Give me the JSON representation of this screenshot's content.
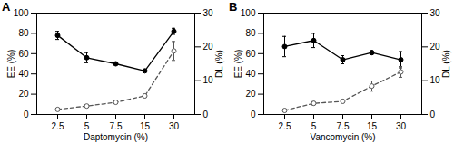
{
  "chart_data": [
    {
      "type": "line",
      "title": "A",
      "categories": [
        "2.5",
        "5",
        "7.5",
        "15",
        "30"
      ],
      "xlabel": "Daptomycin (%)",
      "ylabel": "EE (%)",
      "y2label": "DL (%)",
      "ylim": [
        0,
        100
      ],
      "yticks": [
        0,
        20,
        40,
        60,
        80,
        100
      ],
      "y2lim": [
        0,
        30
      ],
      "y2ticks": [
        0,
        10,
        20,
        30
      ],
      "series": [
        {
          "color": "#000000",
          "marker": "circle",
          "line_style": "solid",
          "values": [
            78,
            56,
            50,
            43,
            82
          ],
          "errors": [
            4,
            5,
            1,
            1,
            3
          ]
        },
        {
          "axis": "y2",
          "color": "#555555",
          "marker": "open circle",
          "line_style": "dashed",
          "values": [
            1.5,
            2.5,
            3.6,
            5.5,
            18.8
          ],
          "errors": [
            0.3,
            0.3,
            0.4,
            0.5,
            2.8
          ]
        }
      ]
    },
    {
      "type": "line",
      "title": "B",
      "categories": [
        "2.5",
        "5",
        "7.5",
        "15",
        "30"
      ],
      "xlabel": "Vancomycin (%)",
      "ylabel": "EE (%)",
      "y2label": "DL (%)",
      "ylim": [
        0,
        100
      ],
      "yticks": [
        0,
        20,
        40,
        60,
        80,
        100
      ],
      "y2lim": [
        0,
        30
      ],
      "y2ticks": [
        0,
        10,
        20,
        30
      ],
      "series": [
        {
          "color": "#000000",
          "marker": "circle",
          "line_style": "solid",
          "values": [
            67,
            73,
            54,
            61,
            54
          ],
          "errors": [
            10,
            7,
            4,
            2,
            8
          ]
        },
        {
          "axis": "y2",
          "color": "#555555",
          "marker": "open circle",
          "line_style": "dashed",
          "values": [
            1.2,
            3.3,
            3.9,
            8.4,
            12.6
          ],
          "errors": [
            0.3,
            0.5,
            0.5,
            1.5,
            1.6
          ]
        }
      ]
    }
  ]
}
